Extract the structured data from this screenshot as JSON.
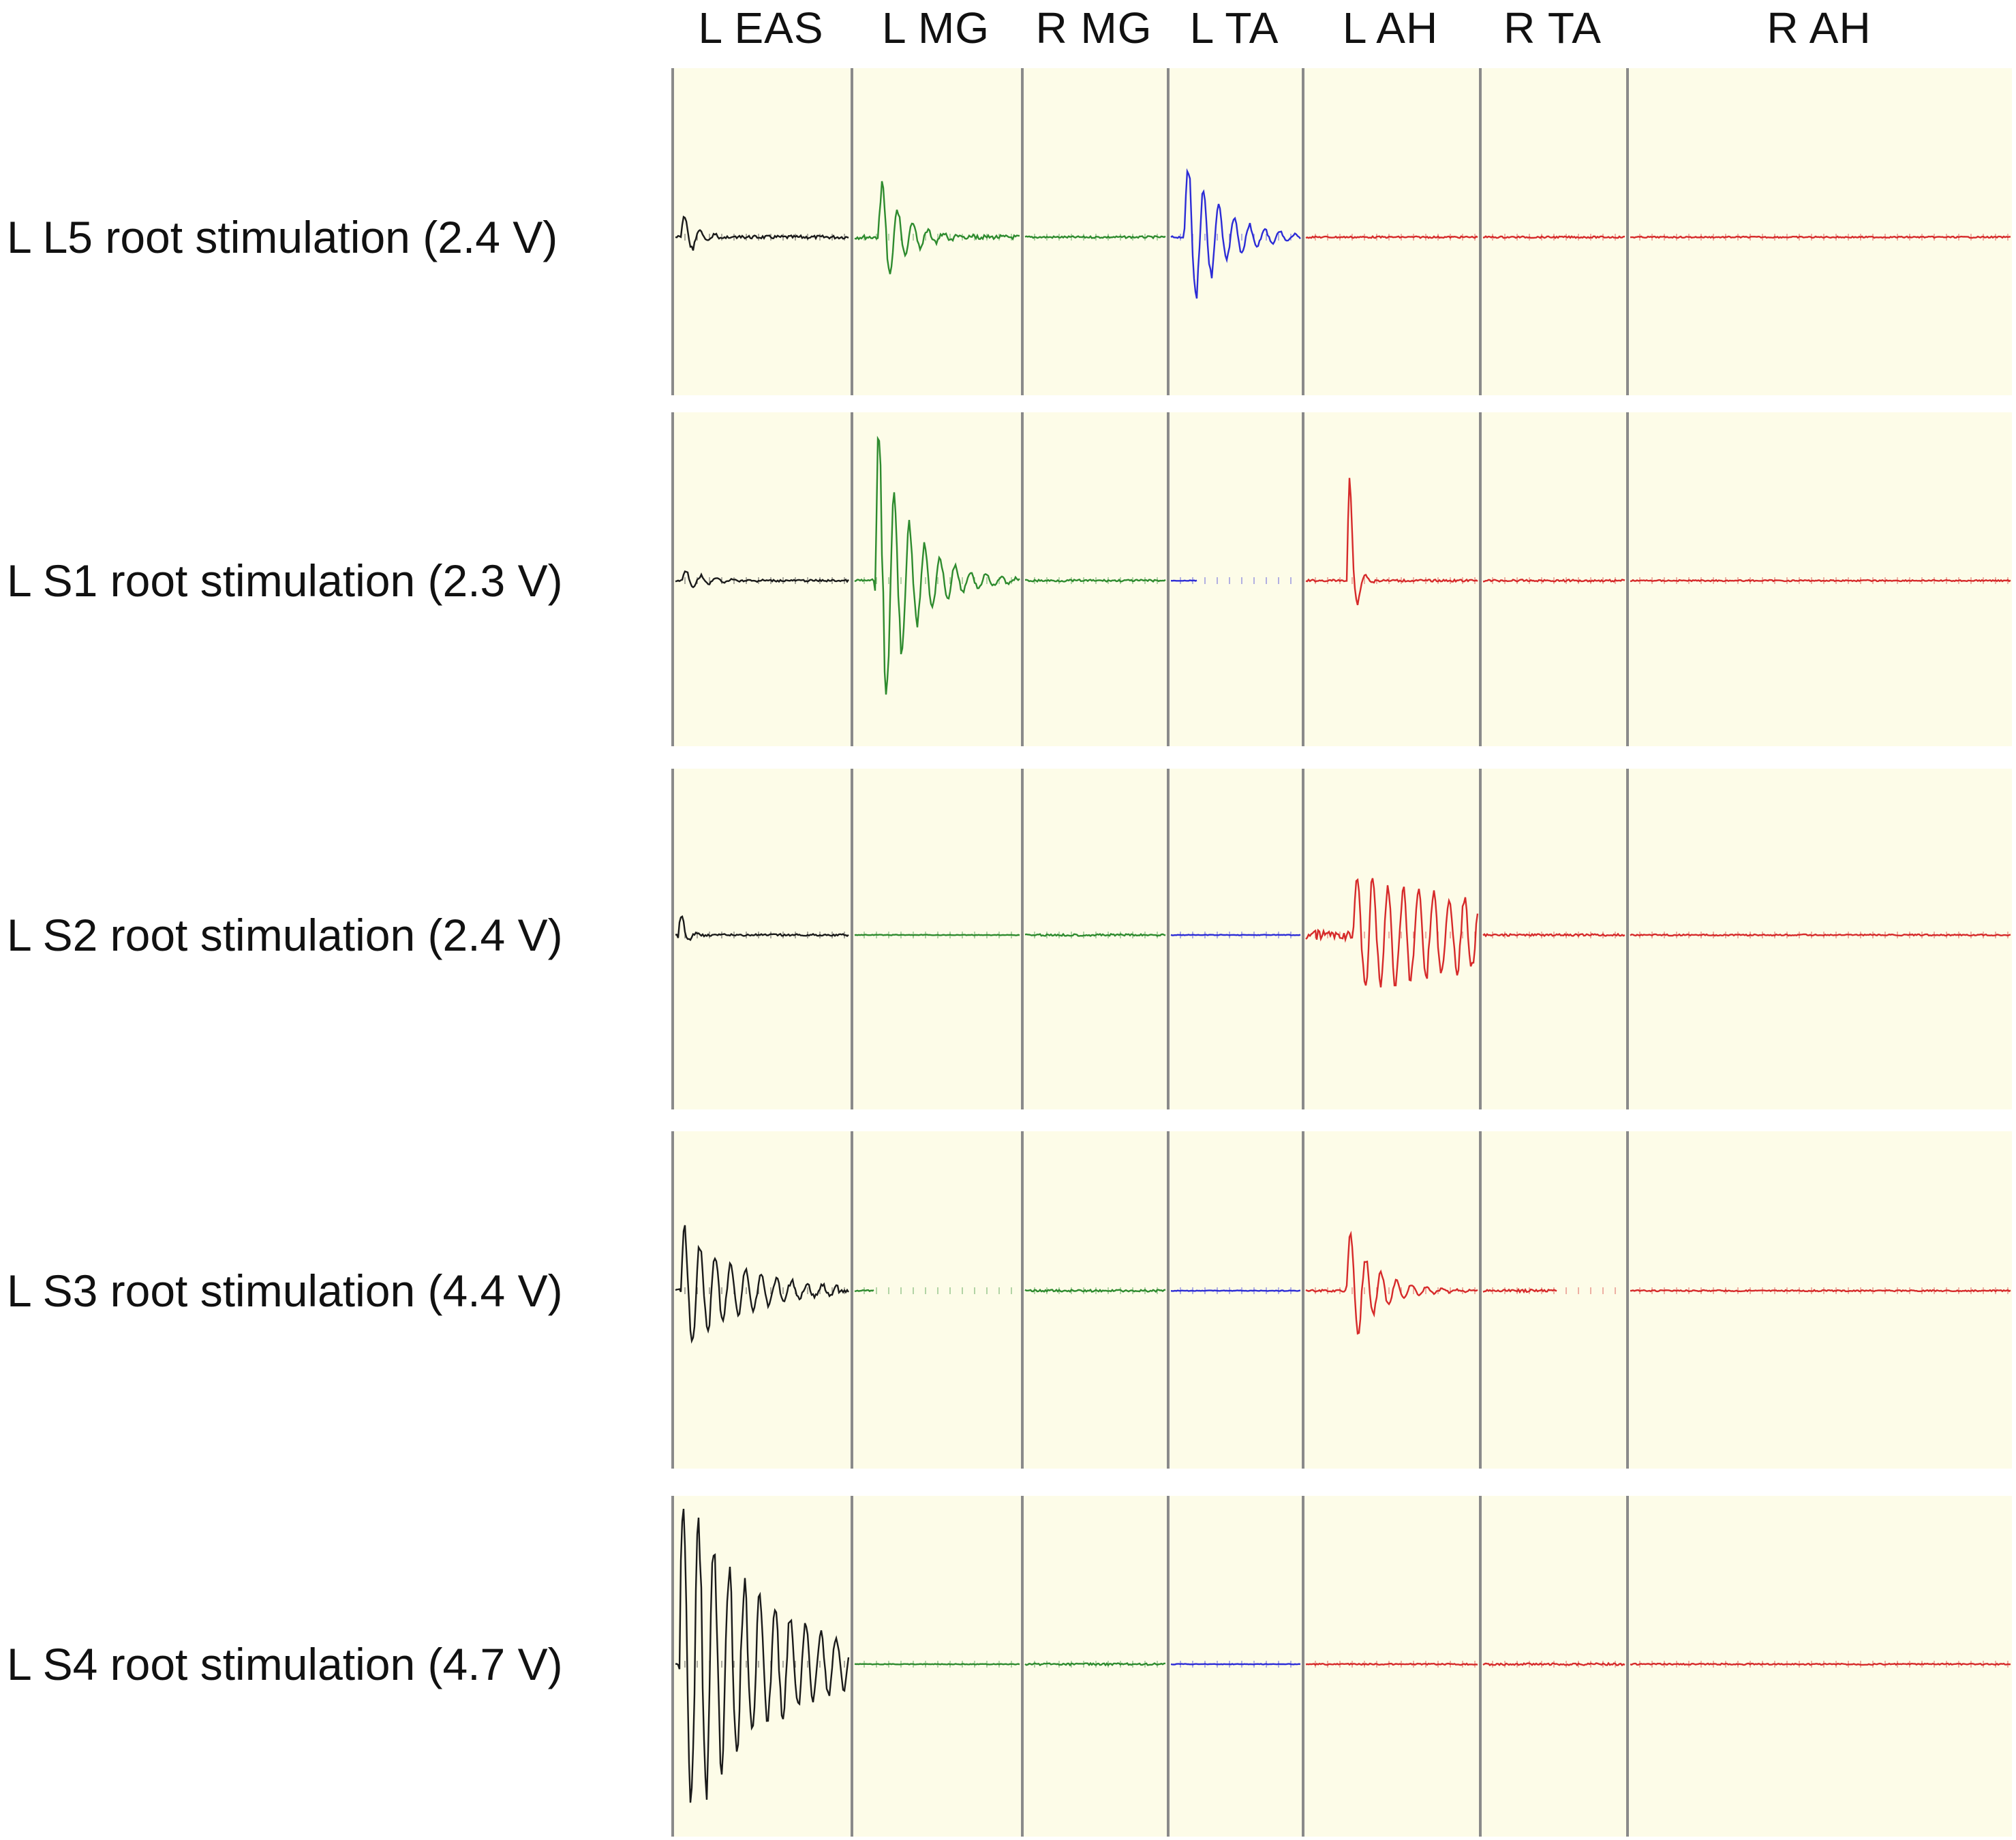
{
  "figure": {
    "colors": {
      "background": "#fdfce8",
      "divider": "#8a8a8a",
      "eas": "#1a1a1a",
      "mg": "#2e8b2e",
      "ta": "#2c2cd6",
      "ah": "#d62a2a"
    },
    "muscles": [
      "L EAS",
      "L MG",
      "R MG",
      "L TA",
      "L AH",
      "R TA",
      "R AH"
    ],
    "rows": [
      {
        "label": "L L5 root stimulation (2.4 V)"
      },
      {
        "label": "L S1 root stimulation (2.3 V)"
      },
      {
        "label": "L S2 root stimulation (2.4 V)"
      },
      {
        "label": "L S3 root stimulation (4.4 V)"
      },
      {
        "label": "L S4 root stimulation (4.7 V)"
      }
    ]
  }
}
